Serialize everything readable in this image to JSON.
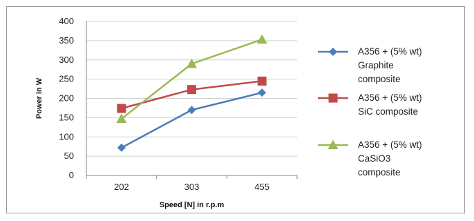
{
  "chart_data": {
    "type": "line",
    "categories": [
      "202",
      "303",
      "455"
    ],
    "xlabel": "Speed [N] in r.p.m",
    "ylabel": "Power in W",
    "ylim": [
      0,
      400
    ],
    "yticks": [
      "0",
      "50",
      "100",
      "150",
      "200",
      "250",
      "300",
      "350",
      "400"
    ],
    "grid": "horizontal major gridlines",
    "legend_position": "right",
    "series": [
      {
        "name": "A356 + (5% wt) Graphite composite",
        "legend_lines": [
          "A356 + (5% wt)",
          "Graphite",
          "composite"
        ],
        "values": [
          72,
          170,
          215
        ],
        "color": "#4a7ebb",
        "marker": "diamond"
      },
      {
        "name": "A356 + (5% wt) SiC composite",
        "legend_lines": [
          "A356 + (5% wt)",
          "SiC composite"
        ],
        "values": [
          174,
          223,
          245
        ],
        "color": "#be4b48",
        "marker": "square"
      },
      {
        "name": "A356 + (5% wt) CaSiO3 composite",
        "legend_lines": [
          "A356 + (5% wt)",
          "CaSiO3",
          "composite"
        ],
        "values": [
          147,
          290,
          353
        ],
        "color": "#98b954",
        "marker": "triangle"
      }
    ]
  }
}
